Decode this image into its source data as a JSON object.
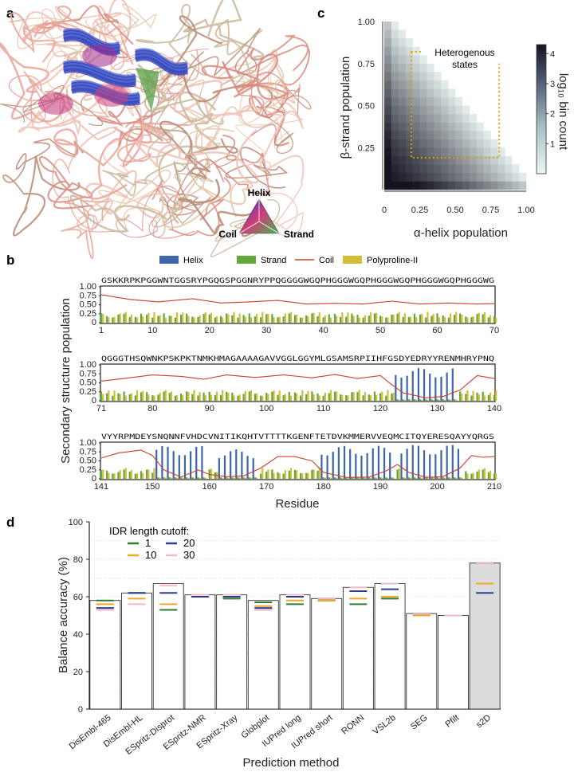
{
  "panels": {
    "a": "a",
    "b": "b",
    "c": "c",
    "d": "d"
  },
  "panel_a": {
    "legend": {
      "top": "Helix",
      "left": "Coil",
      "right": "Strand"
    }
  },
  "chart_data": [
    {
      "id": "c",
      "type": "heatmap",
      "xlabel": "α-helix population",
      "ylabel": "β-strand population",
      "xticks": [
        "0",
        "0.25",
        "0.50",
        "0.75",
        "1.00"
      ],
      "yticks": [
        "0.25",
        "0.50",
        "0.75",
        "1.00"
      ],
      "xlim": [
        0,
        1
      ],
      "ylim": [
        0,
        1
      ],
      "colorbar": {
        "label": "log₁₀ bin count",
        "ticks": [
          "1",
          "2",
          "3",
          "4"
        ],
        "range": [
          0,
          4.3
        ]
      },
      "annotation": [
        "Heterogenous",
        "states"
      ],
      "region": {
        "x": [
          0.19,
          0.81
        ],
        "y": [
          0.19,
          0.82
        ]
      },
      "bins": 20,
      "colors": {
        "low": "#eaf5f4",
        "high": "#141421",
        "region": "#e0a400"
      }
    },
    {
      "id": "b",
      "type": "bar",
      "legend": [
        "Helix",
        "Strand",
        "Coil",
        "Polyproline-II"
      ],
      "colors": {
        "Helix": "#3d66a8",
        "Strand": "#62a83a",
        "Coil": "#c9402a",
        "Polyproline-II": "#d5bc36"
      },
      "ylabel": "Secondary structure population",
      "xlabel": "Residue",
      "yticks": [
        "0",
        "0.25",
        "0.50",
        "0.75",
        "1.00"
      ],
      "ylim": [
        0,
        1
      ],
      "rows": [
        {
          "sequence": "GSKKRPKPGGWNTGGSRYPGQGSPGGNRYPPQGGGGWGQPHGGGWGQPHGGGWGQPHGGGWGQPHGGGWG",
          "start": 1,
          "end": 70,
          "xticks": [
            "1",
            "10",
            "20",
            "30",
            "40",
            "50",
            "60",
            "70"
          ],
          "helix_segments": [],
          "coil_points": [
            [
              1,
              0.78
            ],
            [
              6,
              0.65
            ],
            [
              11,
              0.58
            ],
            [
              17,
              0.67
            ],
            [
              22,
              0.55
            ],
            [
              27,
              0.58
            ],
            [
              32,
              0.62
            ],
            [
              37,
              0.52
            ],
            [
              42,
              0.54
            ],
            [
              47,
              0.52
            ],
            [
              52,
              0.6
            ],
            [
              57,
              0.52
            ],
            [
              62,
              0.55
            ],
            [
              67,
              0.52
            ],
            [
              70,
              0.53
            ]
          ]
        },
        {
          "sequence": "QGGGTHSQWNKPSKPKTNMKHMAGAAAAGAVVGGLGGYMLGSAMSRPIIHFGSDYEDRYYRENMHRYPNQ",
          "start": 71,
          "end": 140,
          "xticks": [
            "71",
            "80",
            "90",
            "100",
            "110",
            "120",
            "130",
            "140"
          ],
          "helix_segments": [
            [
              123,
              133,
              0.92
            ]
          ],
          "coil_points": [
            [
              71,
              0.55
            ],
            [
              75,
              0.62
            ],
            [
              80,
              0.72
            ],
            [
              85,
              0.68
            ],
            [
              89,
              0.6
            ],
            [
              93,
              0.72
            ],
            [
              98,
              0.65
            ],
            [
              103,
              0.72
            ],
            [
              108,
              0.64
            ],
            [
              112,
              0.73
            ],
            [
              116,
              0.62
            ],
            [
              120,
              0.7
            ],
            [
              122,
              0.45
            ],
            [
              124,
              0.22
            ],
            [
              128,
              0.08
            ],
            [
              131,
              0.12
            ],
            [
              134,
              0.3
            ],
            [
              137,
              0.7
            ],
            [
              140,
              0.62
            ]
          ]
        },
        {
          "sequence": "VYYRPMDEYSNQNNFVHDCVNITIKQHTVTTTTKGENFTETDVKMMERVVEQMCITQYERESQAYYQRGS",
          "start": 141,
          "end": 210,
          "xticks": [
            "141",
            "150",
            "160",
            "170",
            "180",
            "190",
            "200",
            "210"
          ],
          "helix_segments": [
            [
              151,
              159,
              0.92
            ],
            [
              162,
              168,
              0.82
            ],
            [
              180,
              192,
              0.92
            ],
            [
              194,
              204,
              0.95
            ]
          ],
          "coil_points": [
            [
              141,
              0.58
            ],
            [
              144,
              0.72
            ],
            [
              148,
              0.8
            ],
            [
              150,
              0.65
            ],
            [
              152,
              0.25
            ],
            [
              155,
              0.05
            ],
            [
              158,
              0.25
            ],
            [
              160,
              0.12
            ],
            [
              163,
              0.06
            ],
            [
              166,
              0.08
            ],
            [
              169,
              0.3
            ],
            [
              172,
              0.62
            ],
            [
              175,
              0.62
            ],
            [
              178,
              0.5
            ],
            [
              180,
              0.18
            ],
            [
              184,
              0.04
            ],
            [
              188,
              0.05
            ],
            [
              191,
              0.22
            ],
            [
              193,
              0.4
            ],
            [
              195,
              0.18
            ],
            [
              198,
              0.04
            ],
            [
              201,
              0.06
            ],
            [
              204,
              0.3
            ],
            [
              206,
              0.65
            ],
            [
              208,
              0.6
            ],
            [
              210,
              0.62
            ]
          ]
        }
      ]
    },
    {
      "id": "d",
      "type": "bar",
      "xlabel": "Prediction method",
      "ylabel": "Balance accuracy (%)",
      "ylim": [
        0,
        100
      ],
      "yticks": [
        "0",
        "20",
        "40",
        "60",
        "80",
        "100"
      ],
      "legend_title": "IDR length cutoff:",
      "cutoffs": [
        "1",
        "20",
        "10",
        "30"
      ],
      "cutoff_colors": {
        "1": "#2e7d32",
        "10": "#f5a623",
        "20": "#2b3f8f",
        "30": "#f2b8c8"
      },
      "highlight": {
        "category": "s2D",
        "color": "#dcdcdc"
      },
      "categories": [
        "DisEmbl-465",
        "DisEmbl-HL",
        "ESpritz-Disprot",
        "ESpritz-NMR",
        "ESpritz-Xray",
        "Globplot",
        "IUPred long",
        "IUPred short",
        "RONN",
        "VSL2b",
        "SEG",
        "Pfilt",
        "s2D"
      ],
      "series": [
        {
          "name": "1",
          "values": [
            58,
            62,
            53,
            60,
            59,
            57,
            56,
            58,
            56,
            59,
            51,
            50,
            78
          ]
        },
        {
          "name": "10",
          "values": [
            56,
            59,
            56,
            60,
            60,
            55,
            58,
            58,
            59,
            60,
            50,
            50,
            67
          ]
        },
        {
          "name": "20",
          "values": [
            54,
            62,
            62,
            60,
            60,
            54,
            60,
            59,
            63,
            64,
            51,
            50,
            62
          ]
        },
        {
          "name": "30",
          "values": [
            53,
            56,
            66,
            61,
            61,
            53,
            61,
            59,
            65,
            67,
            51,
            50,
            78
          ]
        }
      ],
      "bar_values": [
        58,
        62,
        67,
        61,
        61,
        58,
        61,
        59,
        65,
        67,
        51,
        50,
        78
      ]
    }
  ]
}
